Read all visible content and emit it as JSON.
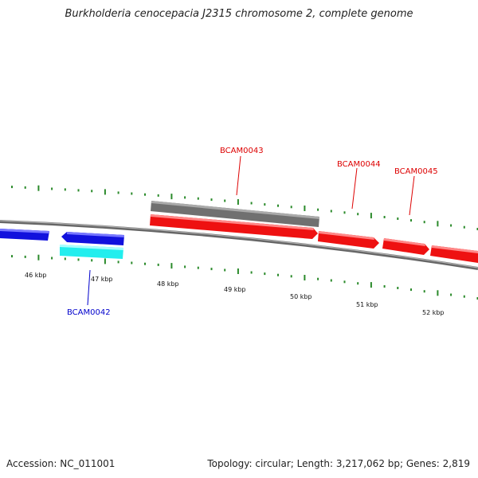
{
  "title": "Burkholderia cenocepacia J2315 chromosome 2, complete genome",
  "footer": {
    "accession": "Accession: NC_011001",
    "summary": "Topology: circular; Length: 3,217,062 bp; Genes: 2,819"
  },
  "colors": {
    "backbone": "#8a8a8a",
    "tick": "#2a8a2a",
    "forward_gene": "#ee1111",
    "reverse_gene": "#1111dd",
    "cyan_feature": "#22eeee",
    "gray_feature": "#707070",
    "red_label": "#dd0000",
    "blue_label": "#0000cc"
  },
  "scale": {
    "major_ticks": [
      "46 kbp",
      "47 kbp",
      "48 kbp",
      "49 kbp",
      "50 kbp",
      "51 kbp",
      "52 kbp"
    ]
  },
  "genes": [
    {
      "label": "BCAM0042",
      "strand": "reverse",
      "color": "#0000cc"
    },
    {
      "label": "BCAM0043",
      "strand": "forward",
      "color": "#dd0000"
    },
    {
      "label": "BCAM0044",
      "strand": "forward",
      "color": "#dd0000"
    },
    {
      "label": "BCAM0045",
      "strand": "forward",
      "color": "#dd0000"
    }
  ]
}
